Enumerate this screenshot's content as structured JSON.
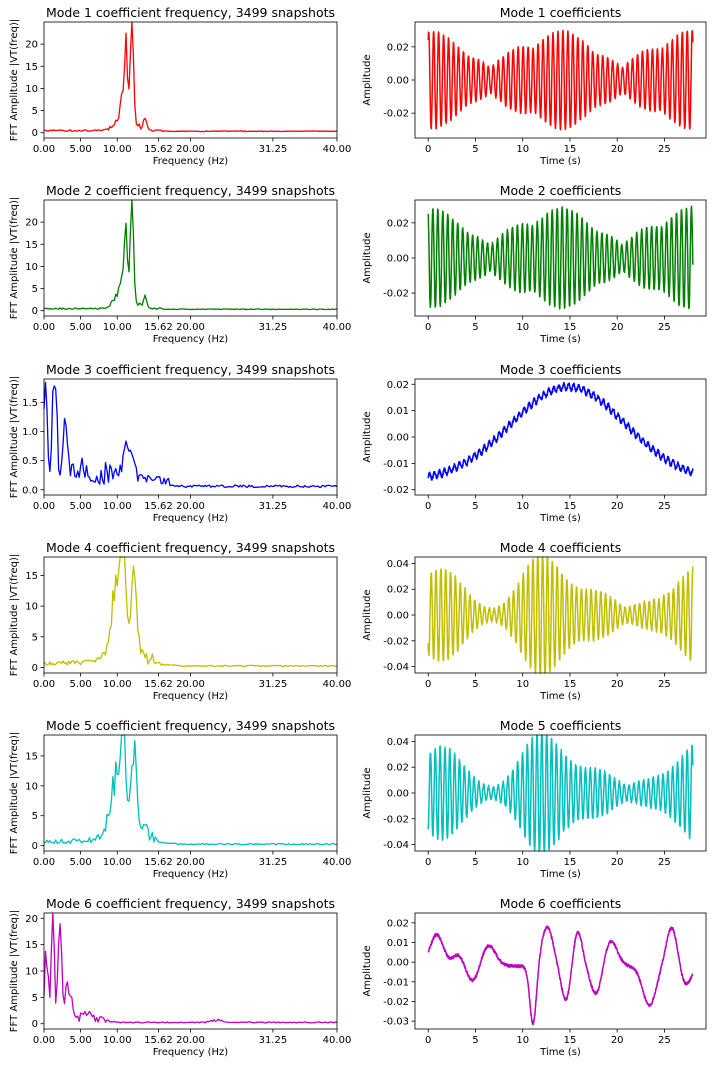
{
  "colors": {
    "m1": "#ff0000",
    "m2": "#008000",
    "m3": "#0000ff",
    "m4": "#bfbf00",
    "m5": "#00bfbf",
    "m6": "#bf00bf"
  },
  "chart_data": [
    {
      "panel": "fft",
      "mode": 1,
      "type": "line",
      "title": "Mode 1 coefficient frequency, 3499 snapshots",
      "xlabel": "Frequency (Hz)",
      "ylabel": "FFT Amplitude |VT(freq)|",
      "xlim": [
        0,
        40
      ],
      "ylim": [
        -1.2,
        25
      ],
      "xticks": [
        "0.00",
        "5.00",
        "10.00",
        "15.62",
        "20.00",
        "31.25",
        "40.00"
      ],
      "yticks": [
        0,
        5,
        10,
        15,
        20
      ],
      "color": "#ff0000",
      "profile": "narrow",
      "peak": 23.5,
      "grid": false
    },
    {
      "panel": "time",
      "mode": 1,
      "type": "line",
      "title": "Mode 1 coefficients",
      "xlabel": "Time (s)",
      "ylabel": "Amplitude",
      "xlim": [
        -1.4,
        29.4
      ],
      "ylim": [
        -0.035,
        0.035
      ],
      "xticks": [
        0,
        5,
        10,
        15,
        20,
        25
      ],
      "yticks": [
        "0.02",
        "0.00",
        "-0.02"
      ],
      "color": "#ff0000",
      "signal": "osc",
      "base": 0.03,
      "seed": 1,
      "grid": false
    },
    {
      "panel": "fft",
      "mode": 2,
      "type": "line",
      "title": "Mode 2 coefficient frequency, 3499 snapshots",
      "xlabel": "Frequency (Hz)",
      "ylabel": "FFT Amplitude |VT(freq)|",
      "xlim": [
        0,
        40
      ],
      "ylim": [
        -1.2,
        25
      ],
      "xticks": [
        "0.00",
        "5.00",
        "10.00",
        "15.62",
        "20.00",
        "31.25",
        "40.00"
      ],
      "yticks": [
        0,
        5,
        10,
        15,
        20
      ],
      "color": "#008000",
      "profile": "narrow",
      "peak": 23.5,
      "grid": false
    },
    {
      "panel": "time",
      "mode": 2,
      "type": "line",
      "title": "Mode 2 coefficients",
      "xlabel": "Time (s)",
      "ylabel": "Amplitude",
      "xlim": [
        -1.4,
        29.4
      ],
      "ylim": [
        -0.033,
        0.033
      ],
      "xticks": [
        0,
        5,
        10,
        15,
        20,
        25
      ],
      "yticks": [
        "0.02",
        "0.00",
        "-0.02"
      ],
      "color": "#008000",
      "signal": "osc",
      "base": 0.029,
      "seed": 2,
      "grid": false
    },
    {
      "panel": "fft",
      "mode": 3,
      "type": "line",
      "title": "Mode 3 coefficient frequency, 3499 snapshots",
      "xlabel": "Frequency (Hz)",
      "ylabel": "FFT Amplitude |VT(freq)|",
      "xlim": [
        0,
        40
      ],
      "ylim": [
        -0.09,
        1.9
      ],
      "xticks": [
        "0.00",
        "5.00",
        "10.00",
        "15.62",
        "20.00",
        "31.25",
        "40.00"
      ],
      "yticks": [
        "0.0",
        "0.5",
        "1.0",
        "1.5"
      ],
      "color": "#0000ff",
      "profile": "low",
      "grid": false
    },
    {
      "panel": "time",
      "mode": 3,
      "type": "line",
      "title": "Mode 3 coefficients",
      "xlabel": "Time (s)",
      "ylabel": "Amplitude",
      "xlim": [
        -1.4,
        29.4
      ],
      "ylim": [
        -0.022,
        0.022
      ],
      "xticks": [
        0,
        5,
        10,
        15,
        20,
        25
      ],
      "yticks": [
        "0.02",
        "0.01",
        "0.00",
        "-0.01",
        "-0.02"
      ],
      "color": "#0000ff",
      "signal": "hump",
      "seed": 3,
      "grid": false
    },
    {
      "panel": "fft",
      "mode": 4,
      "type": "line",
      "title": "Mode 4 coefficient frequency, 3499 snapshots",
      "xlabel": "Frequency (Hz)",
      "ylabel": "FFT Amplitude |VT(freq)|",
      "xlim": [
        0,
        40
      ],
      "ylim": [
        -0.9,
        18
      ],
      "xticks": [
        "0.00",
        "5.00",
        "10.00",
        "15.62",
        "20.00",
        "31.25",
        "40.00"
      ],
      "yticks": [
        0,
        5,
        10,
        15
      ],
      "color": "#bfbf00",
      "profile": "wide",
      "peak": 17,
      "grid": false
    },
    {
      "panel": "time",
      "mode": 4,
      "type": "line",
      "title": "Mode 4 coefficients",
      "xlabel": "Time (s)",
      "ylabel": "Amplitude",
      "xlim": [
        -1.4,
        29.4
      ],
      "ylim": [
        -0.045,
        0.045
      ],
      "xticks": [
        0,
        5,
        10,
        15,
        20,
        25
      ],
      "yticks": [
        "0.04",
        "0.02",
        "0.00",
        "-0.02",
        "-0.04"
      ],
      "color": "#bfbf00",
      "signal": "osc2",
      "base": 0.04,
      "seed": 4,
      "grid": false
    },
    {
      "panel": "fft",
      "mode": 5,
      "type": "line",
      "title": "Mode 5 coefficient frequency, 3499 snapshots",
      "xlabel": "Frequency (Hz)",
      "ylabel": "FFT Amplitude |VT(freq)|",
      "xlim": [
        0,
        40
      ],
      "ylim": [
        -0.9,
        18.5
      ],
      "xticks": [
        "0.00",
        "5.00",
        "10.00",
        "15.62",
        "20.00",
        "31.25",
        "40.00"
      ],
      "yticks": [
        0,
        5,
        10,
        15
      ],
      "color": "#00bfbf",
      "profile": "wide",
      "peak": 17.3,
      "grid": false
    },
    {
      "panel": "time",
      "mode": 5,
      "type": "line",
      "title": "Mode 5 coefficients",
      "xlabel": "Time (s)",
      "ylabel": "Amplitude",
      "xlim": [
        -1.4,
        29.4
      ],
      "ylim": [
        -0.045,
        0.045
      ],
      "xticks": [
        0,
        5,
        10,
        15,
        20,
        25
      ],
      "yticks": [
        "0.04",
        "0.02",
        "0.00",
        "-0.02",
        "-0.04"
      ],
      "color": "#00bfbf",
      "signal": "osc2",
      "base": 0.04,
      "seed": 5,
      "grid": false
    },
    {
      "panel": "fft",
      "mode": 6,
      "type": "line",
      "title": "Mode 6 coefficient frequency, 3499 snapshots",
      "xlabel": "Frequency (Hz)",
      "ylabel": "FFT Amplitude |VT(freq)|",
      "xlim": [
        0,
        40
      ],
      "ylim": [
        -1,
        21
      ],
      "xticks": [
        "0.00",
        "5.00",
        "10.00",
        "15.62",
        "20.00",
        "31.25",
        "40.00"
      ],
      "yticks": [
        0,
        5,
        10,
        15,
        20
      ],
      "color": "#bf00bf",
      "profile": "low6",
      "grid": false
    },
    {
      "panel": "time",
      "mode": 6,
      "type": "line",
      "title": "Mode 6 coefficients",
      "xlabel": "Time (s)",
      "ylabel": "Amplitude",
      "xlim": [
        -1.4,
        29.4
      ],
      "ylim": [
        -0.034,
        0.025
      ],
      "xticks": [
        0,
        5,
        10,
        15,
        20,
        25
      ],
      "yticks": [
        "0.02",
        "0.01",
        "0.00",
        "-0.01",
        "-0.02",
        "-0.03"
      ],
      "color": "#bf00bf",
      "signal": "wander",
      "seed": 6,
      "grid": false
    }
  ]
}
